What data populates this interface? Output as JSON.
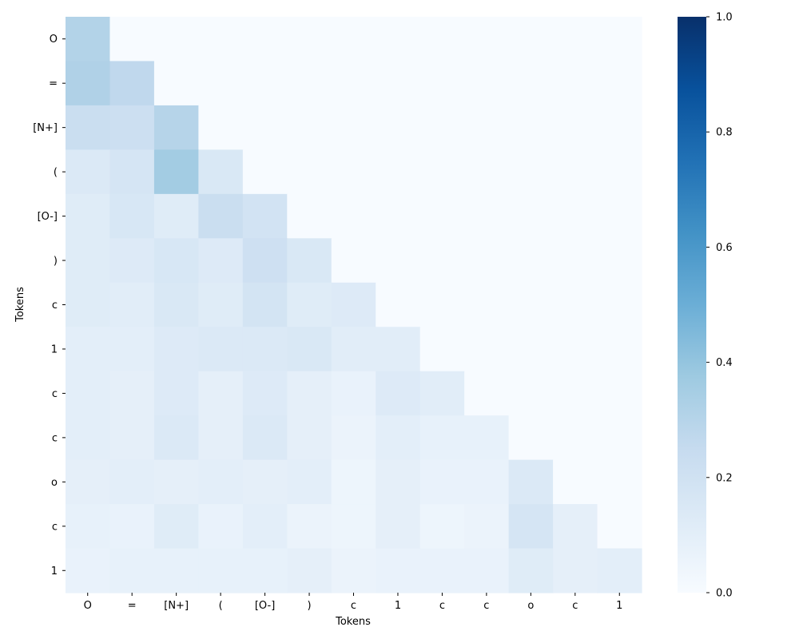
{
  "chart_data": {
    "type": "heatmap",
    "title": "",
    "xlabel": "Tokens",
    "ylabel": "Tokens",
    "x_tokens": [
      "O",
      "=",
      "[N+]",
      "(",
      "[O-]",
      ")",
      "c",
      "1",
      "c",
      "c",
      "o",
      "c",
      "1"
    ],
    "y_tokens": [
      "O",
      "=",
      "[N+]",
      "(",
      "[O-]",
      ")",
      "c",
      "1",
      "c",
      "c",
      "o",
      "c",
      "1"
    ],
    "values": [
      [
        0.31,
        0.0,
        0.0,
        0.0,
        0.0,
        0.0,
        0.0,
        0.0,
        0.0,
        0.0,
        0.0,
        0.0,
        0.0
      ],
      [
        0.32,
        0.27,
        0.0,
        0.0,
        0.0,
        0.0,
        0.0,
        0.0,
        0.0,
        0.0,
        0.0,
        0.0,
        0.0
      ],
      [
        0.23,
        0.22,
        0.3,
        0.0,
        0.0,
        0.0,
        0.0,
        0.0,
        0.0,
        0.0,
        0.0,
        0.0,
        0.0
      ],
      [
        0.14,
        0.17,
        0.36,
        0.15,
        0.0,
        0.0,
        0.0,
        0.0,
        0.0,
        0.0,
        0.0,
        0.0,
        0.0
      ],
      [
        0.12,
        0.16,
        0.12,
        0.23,
        0.19,
        0.0,
        0.0,
        0.0,
        0.0,
        0.0,
        0.0,
        0.0,
        0.0
      ],
      [
        0.12,
        0.13,
        0.16,
        0.13,
        0.21,
        0.15,
        0.0,
        0.0,
        0.0,
        0.0,
        0.0,
        0.0,
        0.0
      ],
      [
        0.12,
        0.11,
        0.15,
        0.12,
        0.18,
        0.12,
        0.13,
        0.0,
        0.0,
        0.0,
        0.0,
        0.0,
        0.0
      ],
      [
        0.1,
        0.1,
        0.13,
        0.14,
        0.14,
        0.15,
        0.11,
        0.11,
        0.0,
        0.0,
        0.0,
        0.0,
        0.0
      ],
      [
        0.1,
        0.09,
        0.13,
        0.09,
        0.13,
        0.09,
        0.07,
        0.13,
        0.11,
        0.0,
        0.0,
        0.0,
        0.0
      ],
      [
        0.1,
        0.09,
        0.14,
        0.09,
        0.14,
        0.09,
        0.06,
        0.1,
        0.08,
        0.08,
        0.0,
        0.0,
        0.0
      ],
      [
        0.09,
        0.1,
        0.09,
        0.1,
        0.09,
        0.1,
        0.05,
        0.09,
        0.07,
        0.07,
        0.14,
        0.0,
        0.0
      ],
      [
        0.08,
        0.07,
        0.12,
        0.07,
        0.1,
        0.06,
        0.05,
        0.09,
        0.05,
        0.06,
        0.17,
        0.09,
        0.0
      ],
      [
        0.07,
        0.08,
        0.08,
        0.08,
        0.08,
        0.09,
        0.06,
        0.07,
        0.07,
        0.07,
        0.12,
        0.09,
        0.1
      ]
    ],
    "vmin": 0.0,
    "vmax": 1.0,
    "colormap": "Blues",
    "colorbar_ticks": [
      "0.0",
      "0.2",
      "0.4",
      "0.6",
      "0.8",
      "1.0"
    ],
    "colorbar_tick_values": [
      0.0,
      0.2,
      0.4,
      0.6,
      0.8,
      1.0
    ],
    "grid": false
  }
}
